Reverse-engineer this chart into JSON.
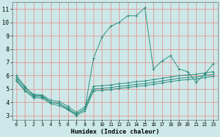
{
  "xlabel": "Humidex (Indice chaleur)",
  "bg_color": "#cce8e8",
  "grid_color": "#e89090",
  "line_color": "#2a8a7a",
  "xlim": [
    -0.5,
    23.5
  ],
  "ylim": [
    2.7,
    11.5
  ],
  "xticks": [
    0,
    1,
    2,
    3,
    4,
    5,
    6,
    7,
    8,
    9,
    10,
    11,
    12,
    13,
    14,
    15,
    16,
    17,
    18,
    19,
    20,
    21,
    22,
    23
  ],
  "yticks": [
    3,
    4,
    5,
    6,
    7,
    8,
    9,
    10,
    11
  ],
  "line1_x": [
    0,
    1,
    2,
    3,
    4,
    5,
    6,
    7,
    8,
    9,
    10,
    11,
    12,
    13,
    14,
    15,
    16,
    17,
    18,
    19,
    20,
    21,
    22,
    23
  ],
  "line1_y": [
    6.0,
    5.2,
    4.5,
    4.5,
    4.0,
    3.9,
    3.5,
    3.1,
    3.5,
    7.3,
    8.9,
    9.7,
    10.0,
    10.5,
    10.5,
    11.1,
    6.5,
    7.1,
    7.5,
    6.5,
    6.3,
    5.5,
    6.1,
    6.9
  ],
  "line2_x": [
    0,
    1,
    2,
    3,
    4,
    5,
    6,
    7,
    8,
    9,
    10,
    11,
    12,
    13,
    14,
    15,
    16,
    17,
    18,
    19,
    20,
    21,
    22,
    23
  ],
  "line2_y": [
    5.85,
    5.1,
    4.6,
    4.55,
    4.15,
    4.05,
    3.7,
    3.25,
    3.65,
    5.2,
    5.25,
    5.3,
    5.4,
    5.45,
    5.55,
    5.6,
    5.7,
    5.8,
    5.9,
    6.0,
    6.05,
    6.1,
    6.2,
    6.3
  ],
  "line3_x": [
    0,
    1,
    2,
    3,
    4,
    5,
    6,
    7,
    8,
    9,
    10,
    11,
    12,
    13,
    14,
    15,
    16,
    17,
    18,
    19,
    20,
    21,
    22,
    23
  ],
  "line3_y": [
    5.7,
    4.95,
    4.45,
    4.4,
    4.0,
    3.9,
    3.55,
    3.1,
    3.5,
    5.0,
    5.05,
    5.1,
    5.2,
    5.25,
    5.35,
    5.4,
    5.5,
    5.6,
    5.7,
    5.8,
    5.85,
    5.9,
    6.0,
    6.1
  ],
  "line4_x": [
    0,
    1,
    2,
    3,
    4,
    5,
    6,
    7,
    8,
    9,
    10,
    11,
    12,
    13,
    14,
    15,
    16,
    17,
    18,
    19,
    20,
    21,
    22,
    23
  ],
  "line4_y": [
    5.6,
    4.85,
    4.35,
    4.3,
    3.9,
    3.75,
    3.45,
    3.0,
    3.35,
    4.85,
    4.9,
    4.95,
    5.05,
    5.1,
    5.2,
    5.25,
    5.35,
    5.45,
    5.55,
    5.65,
    5.7,
    5.75,
    5.85,
    5.95
  ],
  "xlabel_fontsize": 6.5,
  "tick_fontsize_x": 4.8,
  "tick_fontsize_y": 6.0
}
